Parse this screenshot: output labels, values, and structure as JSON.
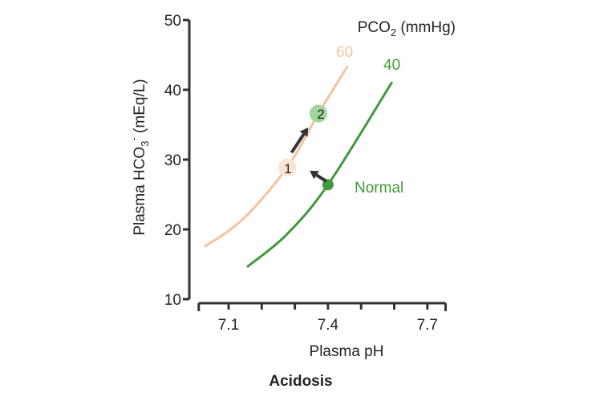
{
  "chart_data": {
    "type": "line",
    "title": "",
    "xlabel": "Plasma pH",
    "ylabel": "Plasma HCO",
    "ylabel_sub": "3",
    "ylabel_sup": "-",
    "ylabel_unit": " (mEq/L)",
    "caption": "Acidosis",
    "legend_title": "PCO",
    "legend_title_sub": "2",
    "legend_title_unit": " (mmHg)",
    "xlim": [
      7.01,
      7.755
    ],
    "ylim": [
      10,
      50
    ],
    "xticks": [
      7.1,
      7.2,
      7.3,
      7.4,
      7.5,
      7.6,
      7.7
    ],
    "xtick_labels": [
      "7.1",
      "7.4",
      "7.7"
    ],
    "yticks": [
      10,
      20,
      30,
      40,
      50
    ],
    "ytick_labels": [
      "10",
      "20",
      "30",
      "40",
      "50"
    ],
    "grid": false,
    "series": [
      {
        "name": "60",
        "color": "#f3c49d",
        "x": [
          7.03,
          7.144,
          7.277,
          7.371,
          7.458
        ],
        "y": [
          17.6,
          21.5,
          28.9,
          36.6,
          43.3
        ]
      },
      {
        "name": "40",
        "color": "#3f9a3a",
        "x": [
          7.158,
          7.274,
          7.4,
          7.592
        ],
        "y": [
          14.7,
          19.2,
          26.4,
          41.0
        ]
      }
    ],
    "points": [
      {
        "label": "Normal",
        "x": 7.4,
        "y": 26.4,
        "color": "#3f9a3a"
      },
      {
        "label": "1",
        "x": 7.277,
        "y": 28.9,
        "color": "#fbe4d2"
      },
      {
        "label": "2",
        "x": 7.371,
        "y": 36.6,
        "color": "#9fd69b"
      }
    ],
    "arrows": [
      {
        "from": [
          7.395,
          26.9
        ],
        "to": [
          7.345,
          28.4
        ]
      },
      {
        "from": [
          7.29,
          31.0
        ],
        "to": [
          7.34,
          34.6
        ]
      }
    ]
  }
}
